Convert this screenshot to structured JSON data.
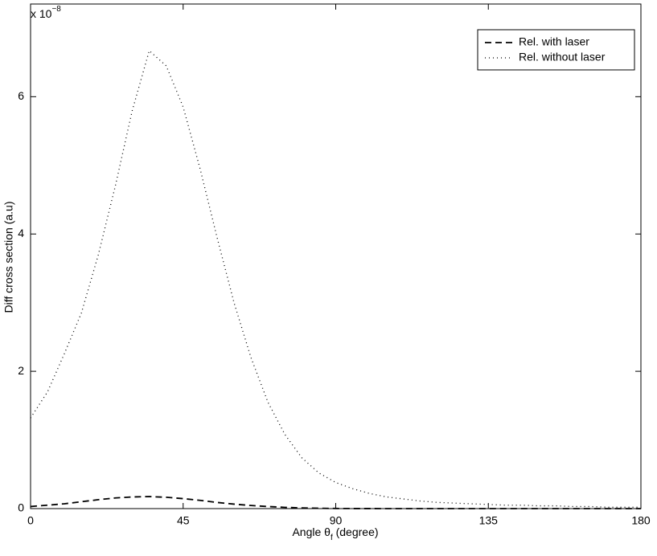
{
  "chart_data": {
    "type": "line",
    "x_label": {
      "text": "Angle θ",
      "subscript": "f",
      "suffix": " (degree)"
    },
    "y_label": "Diff cross section (a.u)",
    "y_multiplier": {
      "base": "x 10",
      "exponent": "−8"
    },
    "x": [
      0,
      5,
      10,
      15,
      20,
      25,
      30,
      35,
      40,
      45,
      50,
      55,
      60,
      65,
      70,
      75,
      80,
      85,
      90,
      95,
      100,
      105,
      110,
      115,
      120,
      125,
      130,
      135,
      140,
      145,
      150,
      155,
      160,
      165,
      170,
      175,
      180
    ],
    "series": [
      {
        "name": "Rel. with laser",
        "color": "#000000",
        "line_style": "dashed",
        "values": [
          0.03,
          0.05,
          0.07,
          0.1,
          0.13,
          0.155,
          0.17,
          0.175,
          0.165,
          0.145,
          0.12,
          0.09,
          0.065,
          0.045,
          0.03,
          0.018,
          0.01,
          0.005,
          0.002,
          0.001,
          0.001,
          0,
          0,
          0,
          0,
          0,
          0,
          0,
          0,
          0,
          0,
          0,
          0,
          0,
          0,
          0,
          0
        ]
      },
      {
        "name": "Rel. without laser",
        "color": "#000000",
        "line_style": "dotted",
        "values": [
          1.32,
          1.7,
          2.26,
          2.85,
          3.7,
          4.7,
          5.8,
          6.67,
          6.45,
          5.85,
          4.95,
          3.95,
          3.0,
          2.2,
          1.55,
          1.08,
          0.74,
          0.52,
          0.38,
          0.29,
          0.22,
          0.17,
          0.14,
          0.11,
          0.09,
          0.08,
          0.07,
          0.06,
          0.05,
          0.05,
          0.04,
          0.04,
          0.03,
          0.03,
          0.02,
          0.02,
          0.02
        ]
      }
    ],
    "xlim": [
      0,
      180
    ],
    "xticks": [
      0,
      45,
      90,
      135,
      180
    ],
    "ylim": [
      0,
      7.35
    ],
    "yticks": [
      0,
      2,
      4,
      6
    ],
    "grid": false,
    "legend_position": "upper-right"
  }
}
